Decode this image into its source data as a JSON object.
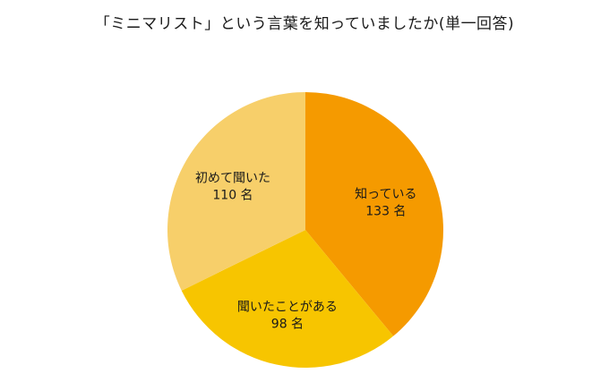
{
  "chart_data": {
    "type": "pie",
    "title": "「ミニマリスト」という言葉を知っていましたか(単一回答)",
    "unit": "名",
    "slices": [
      {
        "label": "知っている",
        "value": 133,
        "value_text": "133 名",
        "color": "#f59a00"
      },
      {
        "label": "聞いたことがある",
        "value": 98,
        "value_text": "98 名",
        "color": "#f7c500"
      },
      {
        "label": "初めて聞いた",
        "value": 110,
        "value_text": "110 名",
        "color": "#f7cf6a"
      }
    ],
    "start_angle_deg": 0,
    "direction": "clockwise"
  }
}
